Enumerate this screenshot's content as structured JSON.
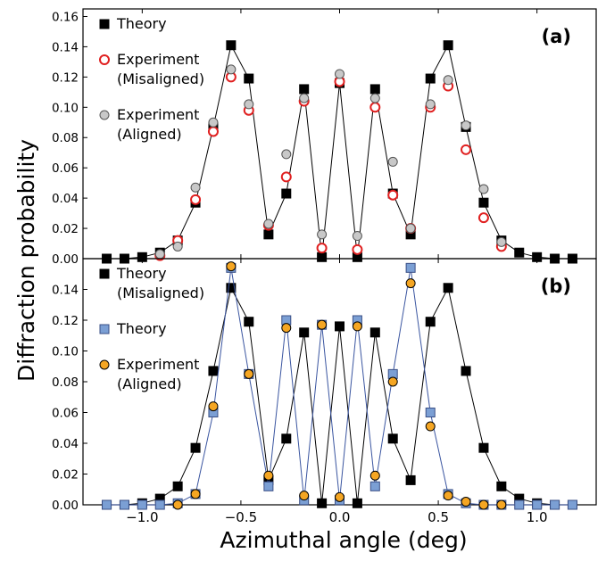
{
  "chart_data": [
    {
      "type": "line",
      "panel_label": "(a)",
      "xlabel": "Azimuthal angle (deg)",
      "ylabel": "Diffraction probability",
      "xlim": [
        -1.3,
        1.3
      ],
      "ylim": [
        0,
        0.165
      ],
      "x_ticks": [
        -1.0,
        -0.5,
        0.0,
        0.5,
        1.0
      ],
      "y_ticks": [
        "0.00",
        "0.02",
        "0.04",
        "0.06",
        "0.08",
        "0.10",
        "0.12",
        "0.14",
        "0.16"
      ],
      "grid": false,
      "legend_position": "top-left",
      "series": [
        {
          "name": "Theory",
          "marker": "square",
          "color": "#000000",
          "face": "#000000",
          "line": true,
          "line_color": "#000000",
          "x": [
            -1.18,
            -1.09,
            -1.0,
            -0.91,
            -0.82,
            -0.73,
            -0.64,
            -0.55,
            -0.46,
            -0.36,
            -0.27,
            -0.18,
            -0.09,
            0.0,
            0.09,
            0.18,
            0.27,
            0.36,
            0.46,
            0.55,
            0.64,
            0.73,
            0.82,
            0.91,
            1.0,
            1.09,
            1.18
          ],
          "y": [
            0.0,
            0.0,
            0.001,
            0.004,
            0.012,
            0.037,
            0.087,
            0.141,
            0.119,
            0.016,
            0.043,
            0.112,
            0.001,
            0.116,
            0.001,
            0.112,
            0.043,
            0.016,
            0.119,
            0.141,
            0.087,
            0.037,
            0.012,
            0.004,
            0.001,
            0.0,
            0.0
          ]
        },
        {
          "name": "Experiment\n(Misaligned)",
          "marker": "circle-open",
          "color": "#e02020",
          "face": "none",
          "line": false,
          "x": [
            -0.91,
            -0.82,
            -0.73,
            -0.64,
            -0.55,
            -0.46,
            -0.36,
            -0.27,
            -0.18,
            -0.09,
            0.0,
            0.09,
            0.18,
            0.27,
            0.36,
            0.46,
            0.55,
            0.64,
            0.73,
            0.82
          ],
          "y": [
            0.002,
            0.012,
            0.039,
            0.084,
            0.12,
            0.098,
            0.022,
            0.054,
            0.104,
            0.007,
            0.117,
            0.006,
            0.1,
            0.042,
            0.02,
            0.1,
            0.114,
            0.072,
            0.027,
            0.008
          ]
        },
        {
          "name": "Experiment\n(Aligned)",
          "marker": "circle",
          "color": "#555555",
          "face": "#c8c8c8",
          "line": false,
          "x": [
            -0.91,
            -0.82,
            -0.73,
            -0.64,
            -0.55,
            -0.46,
            -0.36,
            -0.27,
            -0.18,
            -0.09,
            0.0,
            0.09,
            0.18,
            0.27,
            0.36,
            0.46,
            0.55,
            0.64,
            0.73,
            0.82
          ],
          "y": [
            0.003,
            0.008,
            0.047,
            0.09,
            0.125,
            0.102,
            0.023,
            0.069,
            0.106,
            0.016,
            0.122,
            0.015,
            0.106,
            0.064,
            0.02,
            0.102,
            0.118,
            0.088,
            0.046,
            0.011
          ]
        }
      ]
    },
    {
      "type": "line",
      "panel_label": "(b)",
      "xlabel": "Azimuthal angle (deg)",
      "ylabel": "Diffraction probability",
      "xlim": [
        -1.3,
        1.3
      ],
      "ylim": [
        0,
        0.16
      ],
      "x_ticks": [
        -1.0,
        -0.5,
        0.0,
        0.5,
        1.0
      ],
      "y_ticks": [
        "0.00",
        "0.02",
        "0.04",
        "0.06",
        "0.08",
        "0.10",
        "0.12",
        "0.14"
      ],
      "grid": false,
      "legend_position": "top-left",
      "series": [
        {
          "name": "Theory\n(Misaligned)",
          "marker": "square",
          "color": "#000000",
          "face": "#000000",
          "line": true,
          "line_color": "#000000",
          "x": [
            -1.18,
            -1.09,
            -1.0,
            -0.91,
            -0.82,
            -0.73,
            -0.64,
            -0.55,
            -0.46,
            -0.36,
            -0.27,
            -0.18,
            -0.09,
            0.0,
            0.09,
            0.18,
            0.27,
            0.36,
            0.46,
            0.55,
            0.64,
            0.73,
            0.82,
            0.91,
            1.0,
            1.09,
            1.18
          ],
          "y": [
            0.0,
            0.0,
            0.001,
            0.004,
            0.012,
            0.037,
            0.087,
            0.141,
            0.119,
            0.016,
            0.043,
            0.112,
            0.001,
            0.116,
            0.001,
            0.112,
            0.043,
            0.016,
            0.119,
            0.141,
            0.087,
            0.037,
            0.012,
            0.004,
            0.001,
            0.0,
            0.0
          ]
        },
        {
          "name": "Theory",
          "marker": "square",
          "color": "#3a4f86",
          "face": "#7b9fd4",
          "line": true,
          "line_color": "#3a55a0",
          "x": [
            -1.18,
            -1.09,
            -1.0,
            -0.91,
            -0.82,
            -0.73,
            -0.64,
            -0.55,
            -0.46,
            -0.36,
            -0.27,
            -0.18,
            -0.09,
            0.0,
            0.09,
            0.18,
            0.27,
            0.36,
            0.46,
            0.55,
            0.64,
            0.73,
            0.82,
            0.91,
            1.0,
            1.09,
            1.18
          ],
          "y": [
            0.0,
            0.0,
            0.0,
            0.0,
            0.001,
            0.007,
            0.06,
            0.154,
            0.085,
            0.012,
            0.12,
            0.003,
            0.117,
            0.003,
            0.12,
            0.012,
            0.085,
            0.154,
            0.06,
            0.007,
            0.001,
            0.0,
            0.0,
            0.0,
            0.0,
            0.0,
            0.0
          ],
          "x_override": [
            -1.18,
            -1.09,
            -1.0,
            -0.91,
            -0.82,
            -0.73,
            -0.64,
            -0.46,
            -0.36,
            -0.27,
            -0.18,
            -0.09,
            0.0,
            0.09,
            0.18,
            0.27,
            0.36,
            0.46,
            0.55,
            0.64,
            0.73,
            0.82,
            0.91,
            1.0,
            1.09,
            1.18,
            1.18
          ]
        },
        {
          "name": "Experiment\n(Aligned)",
          "marker": "circle",
          "color": "#000000",
          "face": "#f5a623",
          "line": false,
          "x": [
            -0.82,
            -0.73,
            -0.64,
            -0.55,
            -0.46,
            -0.36,
            -0.27,
            -0.18,
            -0.09,
            0.0,
            0.09,
            0.18,
            0.27,
            0.36,
            0.46,
            0.55,
            0.64,
            0.73,
            0.82
          ],
          "y": [
            0.0,
            0.007,
            0.064,
            0.155,
            0.085,
            0.019,
            0.115,
            0.006,
            0.117,
            0.005,
            0.116,
            0.019,
            0.08,
            0.144,
            0.051,
            0.006,
            0.002,
            0.0,
            0.0
          ]
        }
      ]
    }
  ]
}
